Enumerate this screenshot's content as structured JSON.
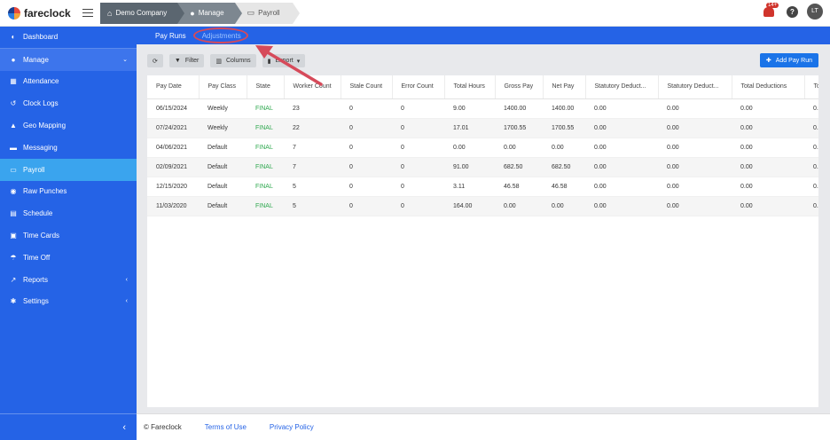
{
  "app": {
    "logo_text": "fareclock"
  },
  "breadcrumbs": [
    {
      "label": "Demo Company",
      "icon": "home-icon"
    },
    {
      "label": "Manage",
      "icon": "user-icon"
    },
    {
      "label": "Payroll",
      "icon": "payroll-icon"
    }
  ],
  "header": {
    "notification_count": "14+",
    "help_label": "?",
    "avatar_initials": "LT"
  },
  "sidebar": {
    "items": [
      {
        "label": "Dashboard",
        "icon": "dashboard-icon"
      },
      {
        "label": "Manage",
        "icon": "user-icon",
        "caret": "⌄"
      },
      {
        "label": "Attendance",
        "icon": "attendance-icon"
      },
      {
        "label": "Clock Logs",
        "icon": "history-icon"
      },
      {
        "label": "Geo Mapping",
        "icon": "map-icon"
      },
      {
        "label": "Messaging",
        "icon": "chat-icon"
      },
      {
        "label": "Payroll",
        "icon": "payroll-icon"
      },
      {
        "label": "Raw Punches",
        "icon": "punch-icon"
      },
      {
        "label": "Schedule",
        "icon": "calendar-icon"
      },
      {
        "label": "Time Cards",
        "icon": "timecard-icon"
      },
      {
        "label": "Time Off",
        "icon": "vacation-icon"
      },
      {
        "label": "Reports",
        "icon": "chart-icon",
        "caret": "‹"
      },
      {
        "label": "Settings",
        "icon": "gear-icon",
        "caret": "‹"
      }
    ],
    "collapse_label": "‹"
  },
  "subnav": {
    "tabs": [
      "Pay Runs",
      "Adjustments"
    ]
  },
  "toolbar": {
    "refresh_label": "⟳",
    "filter_label": "Filter",
    "columns_label": "Columns",
    "export_label": "Export",
    "add_label": "Add Pay Run"
  },
  "table": {
    "columns": [
      "Pay Date",
      "Pay Class",
      "State",
      "Worker Count",
      "Stale Count",
      "Error Count",
      "Total Hours",
      "Gross Pay",
      "Net Pay",
      "Statutory Deduct...",
      "Statutory Deduct...",
      "Total Deductions",
      "To"
    ],
    "rows": [
      [
        "06/15/2024",
        "Weekly",
        "FINAL",
        "23",
        "0",
        "0",
        "9.00",
        "1400.00",
        "1400.00",
        "0.00",
        "0.00",
        "0.00",
        "0."
      ],
      [
        "07/24/2021",
        "Weekly",
        "FINAL",
        "22",
        "0",
        "0",
        "17.01",
        "1700.55",
        "1700.55",
        "0.00",
        "0.00",
        "0.00",
        "0."
      ],
      [
        "04/06/2021",
        "Default",
        "FINAL",
        "7",
        "0",
        "0",
        "0.00",
        "0.00",
        "0.00",
        "0.00",
        "0.00",
        "0.00",
        "0."
      ],
      [
        "02/09/2021",
        "Default",
        "FINAL",
        "7",
        "0",
        "0",
        "91.00",
        "682.50",
        "682.50",
        "0.00",
        "0.00",
        "0.00",
        "0."
      ],
      [
        "12/15/2020",
        "Default",
        "FINAL",
        "5",
        "0",
        "0",
        "3.11",
        "46.58",
        "46.58",
        "0.00",
        "0.00",
        "0.00",
        "0."
      ],
      [
        "11/03/2020",
        "Default",
        "FINAL",
        "5",
        "0",
        "0",
        "164.00",
        "0.00",
        "0.00",
        "0.00",
        "0.00",
        "0.00",
        "0."
      ]
    ]
  },
  "footer": {
    "copyright": "© Fareclock",
    "terms": "Terms of Use",
    "privacy": "Privacy Policy"
  },
  "colors": {
    "brand_blue": "#2563e6",
    "active_item": "#3aa4ee",
    "final_state": "#2fa84f",
    "annotation": "#d64a5a"
  }
}
